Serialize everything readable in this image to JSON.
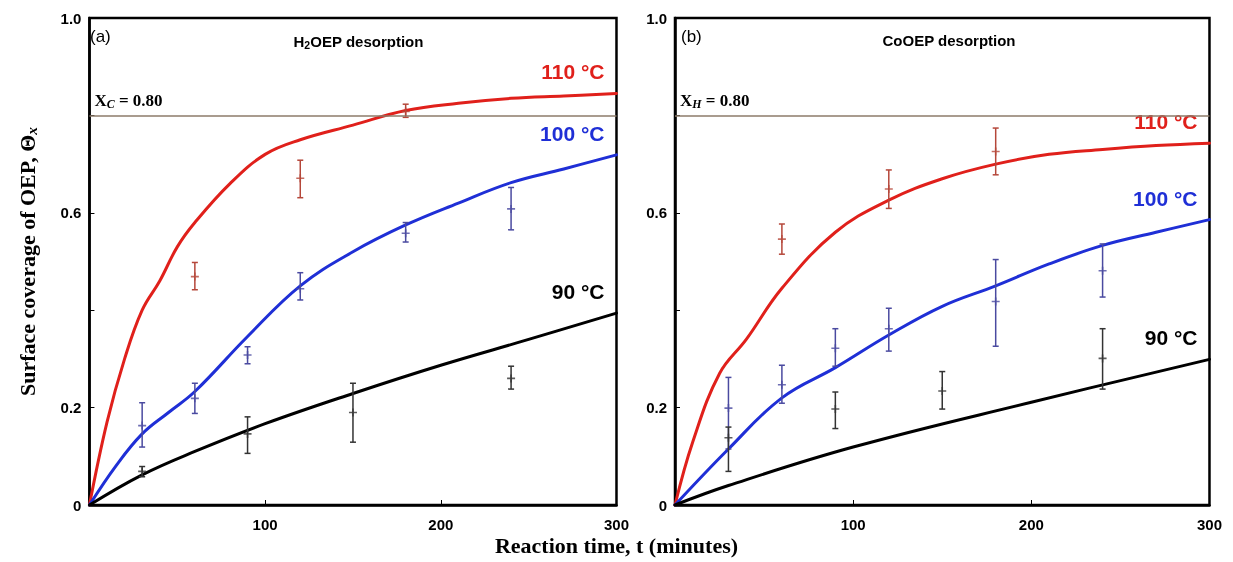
{
  "chart_data": [
    {
      "type": "line",
      "title": "H$_{2}$OEP desorption",
      "ylabel": "Surface coverage of OEP, Θ$_{x}$",
      "xlabel": "Reaction time, t (minutes)",
      "annotations": [
        "(a)"
      ],
      "xlim": [
        0,
        300
      ],
      "xticks": [
        100,
        200,
        300
      ],
      "ylim": [
        0,
        1
      ],
      "yticks": [
        0,
        0.2,
        {
          "value": 0.4,
          "label": null
        },
        0.6,
        {
          "value": 0.8,
          "label": null
        },
        {
          "value": 1,
          "label": "1.0"
        }
      ],
      "grid": false,
      "legend": false,
      "line_style": "solid",
      "marker": "none",
      "ref_lines": [
        {
          "axis": "y",
          "value": 0.8,
          "label": "X$_{C}$ = 0.80",
          "color": "#8c7b6a"
        }
      ],
      "series": [
        {
          "name": "110 °C",
          "color": "#e0201b",
          "x": [
            0,
            10,
            20,
            30,
            40,
            50,
            60,
            80,
            100,
            120,
            150,
            180,
            210,
            240,
            270,
            300
          ],
          "values": [
            0,
            0.17,
            0.3,
            0.4,
            0.46,
            0.53,
            0.58,
            0.66,
            0.72,
            0.75,
            0.78,
            0.81,
            0.825,
            0.835,
            0.84,
            0.845
          ]
        },
        {
          "name": "100 °C",
          "color": "#1f2fd6",
          "x": [
            0,
            15,
            30,
            45,
            60,
            90,
            120,
            150,
            180,
            210,
            240,
            270,
            300
          ],
          "values": [
            0,
            0.08,
            0.146,
            0.19,
            0.233,
            0.346,
            0.45,
            0.52,
            0.575,
            0.62,
            0.662,
            0.69,
            0.719
          ]
        },
        {
          "name": "90 °C",
          "color": "#000000",
          "x": [
            0,
            30,
            60,
            100,
            150,
            200,
            250,
            300
          ],
          "values": [
            0,
            0.062,
            0.11,
            0.167,
            0.229,
            0.287,
            0.34,
            0.394
          ]
        },
        {
          "type": "scatter",
          "marker": "cross",
          "color": "#b5473a",
          "x": [
            60,
            120,
            180
          ],
          "values": [
            0.469,
            0.671,
            0.808
          ],
          "errors": [
            [
              0.442,
              0.498
            ],
            [
              0.631,
              0.708
            ],
            [
              0.796,
              0.823
            ]
          ]
        },
        {
          "type": "scatter",
          "marker": "cross",
          "color": "#4a4aa0",
          "x": [
            30,
            60,
            90,
            120,
            180,
            240
          ],
          "values": [
            0.163,
            0.219,
            0.308,
            0.444,
            0.558,
            0.608
          ],
          "errors": [
            [
              0.119,
              0.21
            ],
            [
              0.188,
              0.25
            ],
            [
              0.29,
              0.325
            ],
            [
              0.421,
              0.477
            ],
            [
              0.54,
              0.58
            ],
            [
              0.565,
              0.652
            ]
          ]
        },
        {
          "type": "scatter",
          "marker": "cross",
          "color": "#333333",
          "x": [
            30,
            90,
            150,
            240
          ],
          "values": [
            0.069,
            0.146,
            0.19,
            0.26
          ],
          "errors": [
            [
              0.058,
              0.079
            ],
            [
              0.106,
              0.181
            ],
            [
              0.129,
              0.25
            ],
            [
              0.238,
              0.285
            ]
          ]
        }
      ]
    },
    {
      "type": "line",
      "title": "CoOEP desorption",
      "annotations": [
        "(b)"
      ],
      "xlim": [
        0,
        300
      ],
      "xticks": [
        100,
        200,
        300
      ],
      "ylim": [
        0,
        1
      ],
      "yticks": [
        0,
        0.2,
        {
          "value": 0.4,
          "label": null
        },
        0.6,
        {
          "value": 0.8,
          "label": null
        },
        {
          "value": 1,
          "label": "1.0"
        }
      ],
      "grid": false,
      "legend": false,
      "line_style": "solid",
      "marker": "none",
      "ref_lines": [
        {
          "axis": "y",
          "value": 0.8,
          "label": "X$_{H}$ = 0.80",
          "color": "#8c7b6a"
        }
      ],
      "series": [
        {
          "name": "110 °C",
          "color": "#e0201b",
          "x": [
            0,
            10,
            25,
            40,
            60,
            90,
            120,
            150,
            180,
            210,
            240,
            270,
            300
          ],
          "values": [
            0,
            0.13,
            0.27,
            0.34,
            0.445,
            0.56,
            0.626,
            0.67,
            0.7,
            0.72,
            0.73,
            0.738,
            0.743
          ]
        },
        {
          "name": "100 °C",
          "color": "#1f2fd6",
          "x": [
            0,
            30,
            60,
            90,
            120,
            150,
            180,
            210,
            240,
            270,
            300
          ],
          "values": [
            0,
            0.115,
            0.22,
            0.282,
            0.349,
            0.408,
            0.45,
            0.495,
            0.533,
            0.56,
            0.586
          ]
        },
        {
          "name": "90 °C",
          "color": "#000000",
          "x": [
            0,
            30,
            100,
            200,
            300
          ],
          "values": [
            0,
            0.04,
            0.119,
            0.211,
            0.299
          ]
        },
        {
          "type": "scatter",
          "marker": "cross",
          "color": "#b5473a",
          "x": [
            60,
            120,
            180
          ],
          "values": [
            0.546,
            0.649,
            0.726
          ],
          "errors": [
            [
              0.515,
              0.577
            ],
            [
              0.609,
              0.688
            ],
            [
              0.678,
              0.774
            ]
          ]
        },
        {
          "type": "scatter",
          "marker": "cross",
          "color": "#4a4aa0",
          "x": [
            30,
            60,
            90,
            120,
            180,
            240
          ],
          "values": [
            0.199,
            0.247,
            0.322,
            0.362,
            0.418,
            0.481
          ],
          "errors": [
            [
              0.115,
              0.262
            ],
            [
              0.209,
              0.287
            ],
            [
              0.285,
              0.362
            ],
            [
              0.316,
              0.404
            ],
            [
              0.326,
              0.504
            ],
            [
              0.427,
              0.536
            ]
          ]
        },
        {
          "type": "scatter",
          "marker": "cross",
          "color": "#333333",
          "x": [
            30,
            90,
            150,
            240
          ],
          "values": [
            0.138,
            0.197,
            0.234,
            0.301
          ],
          "errors": [
            [
              0.069,
              0.16
            ],
            [
              0.157,
              0.232
            ],
            [
              0.197,
              0.274
            ],
            [
              0.238,
              0.362
            ]
          ]
        }
      ]
    }
  ]
}
